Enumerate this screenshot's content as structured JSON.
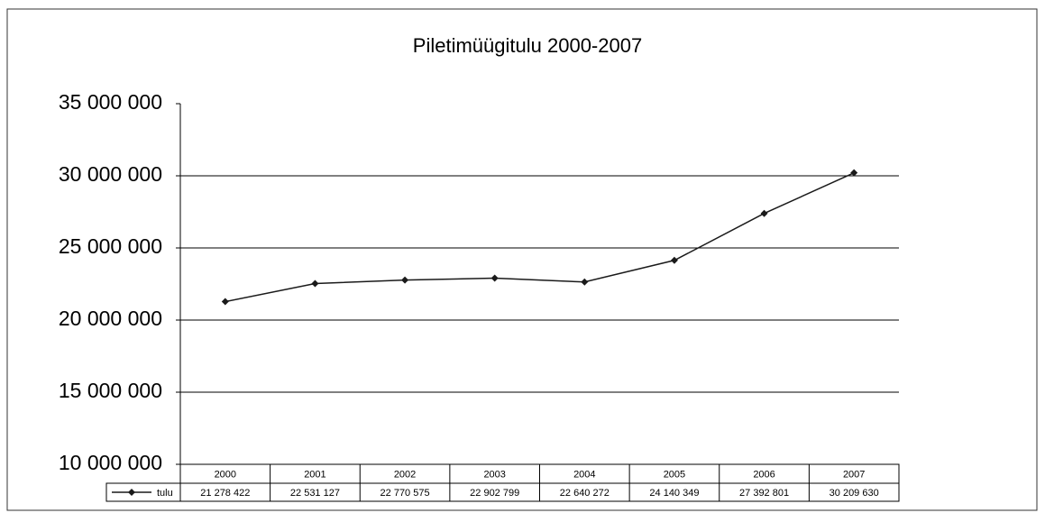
{
  "chart_data": {
    "type": "line",
    "title": "Piletimüügitulu 2000-2007",
    "categories": [
      "2000",
      "2001",
      "2002",
      "2003",
      "2004",
      "2005",
      "2006",
      "2007"
    ],
    "series": [
      {
        "name": "tulu",
        "color": "#1a1a1a",
        "values": [
          21278422,
          22531127,
          22770575,
          22902799,
          22640272,
          24140349,
          27392801,
          30209630
        ],
        "value_labels": [
          "21 278 422",
          "22 531 127",
          "22 770 575",
          "22 902 799",
          "22 640 272",
          "24 140 349",
          "27 392 801",
          "30 209 630"
        ]
      }
    ],
    "ylim": [
      10000000,
      35000000
    ],
    "yticks": [
      {
        "value": 10000000,
        "label": "10 000 000"
      },
      {
        "value": 15000000,
        "label": "15 000 000"
      },
      {
        "value": 20000000,
        "label": "20 000 000"
      },
      {
        "value": 25000000,
        "label": "25 000 000"
      },
      {
        "value": 30000000,
        "label": "30 000 000"
      },
      {
        "value": 35000000,
        "label": "35 000 000"
      }
    ],
    "grid": true
  }
}
